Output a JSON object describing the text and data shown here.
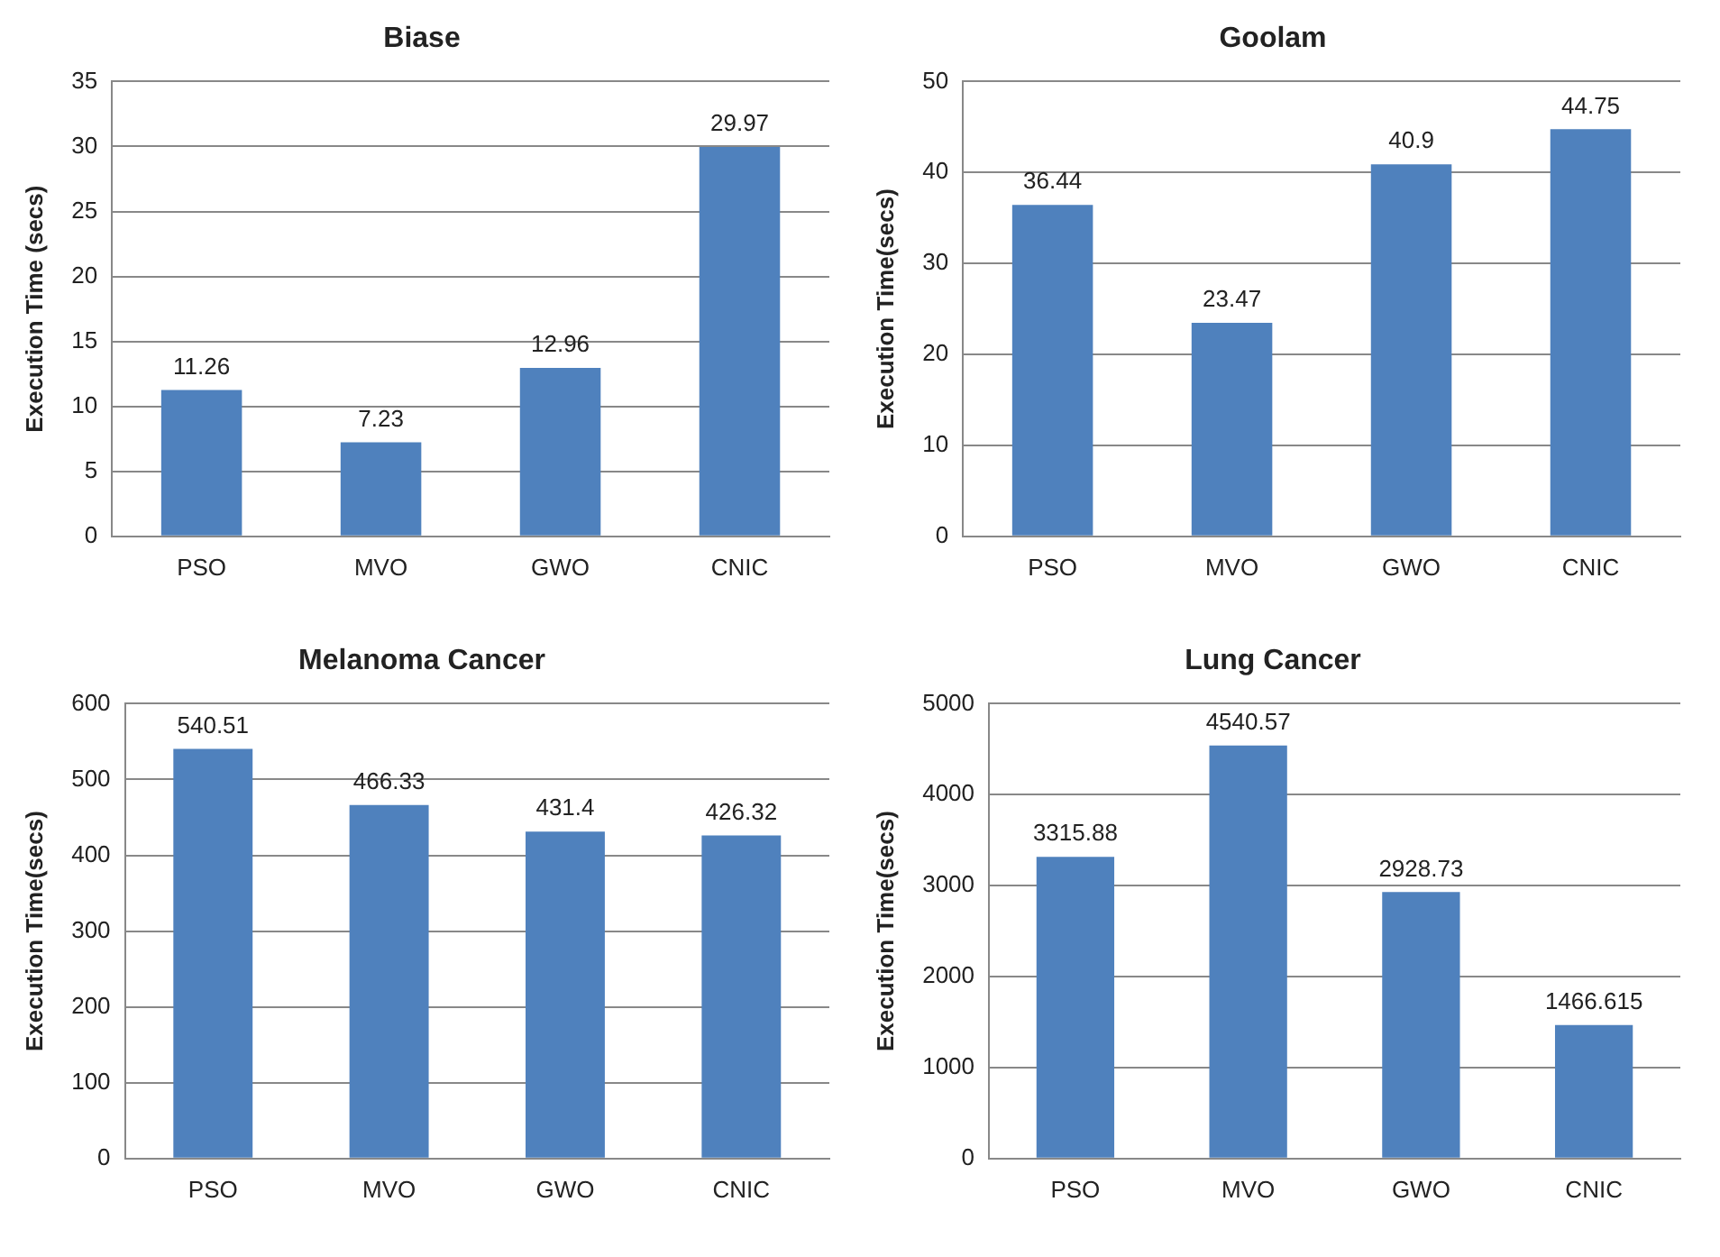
{
  "chart_data": [
    {
      "type": "bar",
      "title": "Biase",
      "ylabel": "Execution Time (secs)",
      "categories": [
        "PSO",
        "MVO",
        "GWO",
        "CNIC"
      ],
      "values": [
        11.26,
        7.23,
        12.96,
        29.97
      ],
      "color": "#4f81bd",
      "ylim": [
        0,
        35
      ],
      "yticks": [
        0,
        5,
        10,
        15,
        20,
        25,
        30,
        35
      ],
      "grid": "y",
      "data_labels": true
    },
    {
      "type": "bar",
      "title": "Goolam",
      "ylabel": "Execution Time(secs)",
      "categories": [
        "PSO",
        "MVO",
        "GWO",
        "CNIC"
      ],
      "values": [
        36.44,
        23.47,
        40.9,
        44.75
      ],
      "color": "#4f81bd",
      "ylim": [
        0,
        50
      ],
      "yticks": [
        0,
        10,
        20,
        30,
        40,
        50
      ],
      "grid": "y",
      "data_labels": true
    },
    {
      "type": "bar",
      "title": "Melanoma Cancer",
      "ylabel": "Execution Time(secs)",
      "categories": [
        "PSO",
        "MVO",
        "GWO",
        "CNIC"
      ],
      "values": [
        540.51,
        466.33,
        431.4,
        426.32
      ],
      "color": "#4f81bd",
      "ylim": [
        0,
        600
      ],
      "yticks": [
        0,
        100,
        200,
        300,
        400,
        500,
        600
      ],
      "grid": "y",
      "data_labels": true
    },
    {
      "type": "bar",
      "title": "Lung Cancer",
      "ylabel": "Execution Time(secs)",
      "categories": [
        "PSO",
        "MVO",
        "GWO",
        "CNIC"
      ],
      "values": [
        3315.88,
        4540.57,
        2928.73,
        1466.615
      ],
      "color": "#4f81bd",
      "ylim": [
        0,
        5000
      ],
      "yticks": [
        0,
        1000,
        2000,
        3000,
        4000,
        5000
      ],
      "grid": "y",
      "data_labels": true
    }
  ]
}
